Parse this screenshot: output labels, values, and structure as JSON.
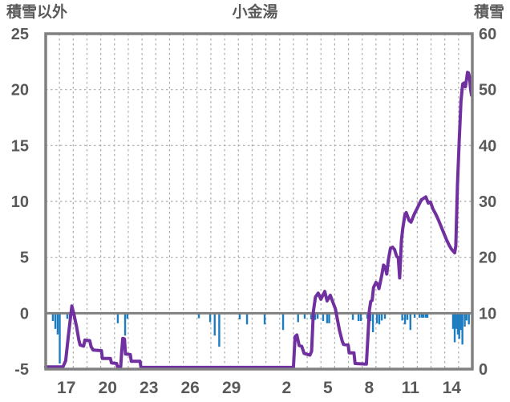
{
  "title": "小金湯",
  "left_axis": {
    "label": "積雪以外",
    "ticks": [
      25,
      20,
      15,
      10,
      5,
      0,
      -5
    ],
    "min": -5,
    "max": 25
  },
  "right_axis": {
    "label": "積雪",
    "ticks": [
      60,
      50,
      40,
      30,
      20,
      10,
      0
    ],
    "min": 0,
    "max": 60
  },
  "x_axis": {
    "tick_labels": [
      "17",
      "20",
      "23",
      "26",
      "29",
      "2",
      "5",
      "8",
      "11",
      "14"
    ],
    "tick_day_indices": [
      1,
      4,
      7,
      10,
      13,
      17,
      20,
      23,
      26,
      29
    ],
    "total_days": 31
  },
  "colors": {
    "snow_line": "#7030A0",
    "bars": "#1E7CC0",
    "frame": "#808080",
    "grid": "#ABABAB",
    "text": "#595959"
  },
  "chart_data": {
    "type": "line+bar",
    "title": "小金湯",
    "left_ylim": [
      -5,
      25
    ],
    "right_ylim": [
      0,
      60
    ],
    "x_range_days": [
      0,
      31
    ],
    "grid": "daily vertical dashed lines; horizontal dashed lines every 5 (left axis); solid grey line at left-axis 0",
    "series": [
      {
        "name": "積雪",
        "type": "line",
        "axis": "right",
        "points": [
          [
            0,
            0.4
          ],
          [
            1.25,
            0.4
          ],
          [
            1.45,
            1.5
          ],
          [
            1.65,
            6
          ],
          [
            1.9,
            11.3
          ],
          [
            2.05,
            9.8
          ],
          [
            2.25,
            7.5
          ],
          [
            2.4,
            5.3
          ],
          [
            2.5,
            4.3
          ],
          [
            2.75,
            4.1
          ],
          [
            2.85,
            5.2
          ],
          [
            3.2,
            5.1
          ],
          [
            3.3,
            4
          ],
          [
            3.45,
            3.4
          ],
          [
            4.05,
            3.3
          ],
          [
            4.12,
            1.9
          ],
          [
            4.7,
            1.9
          ],
          [
            4.78,
            1.1
          ],
          [
            5.15,
            1
          ],
          [
            5.22,
            0.4
          ],
          [
            5.45,
            0.4
          ],
          [
            5.52,
            3
          ],
          [
            5.6,
            5.5
          ],
          [
            5.72,
            5.4
          ],
          [
            5.8,
            2.7
          ],
          [
            6.15,
            2.6
          ],
          [
            6.22,
            1.4
          ],
          [
            6.85,
            1.4
          ],
          [
            6.92,
            0.3
          ],
          [
            18,
            0.3
          ],
          [
            18.12,
            5.8
          ],
          [
            18.25,
            6.1
          ],
          [
            18.42,
            4.2
          ],
          [
            18.6,
            4.1
          ],
          [
            18.78,
            2.8
          ],
          [
            19.2,
            2.5
          ],
          [
            19.32,
            3.2
          ],
          [
            19.45,
            10.3
          ],
          [
            19.6,
            12.9
          ],
          [
            19.8,
            13.6
          ],
          [
            20,
            12.5
          ],
          [
            20.28,
            13.9
          ],
          [
            20.45,
            12.2
          ],
          [
            20.68,
            13.2
          ],
          [
            20.88,
            11.9
          ],
          [
            21.05,
            10.8
          ],
          [
            21.35,
            6.9
          ],
          [
            21.55,
            5
          ],
          [
            21.65,
            4.4
          ],
          [
            21.98,
            4.3
          ],
          [
            22.05,
            2.9
          ],
          [
            22.4,
            2.9
          ],
          [
            22.48,
            1
          ],
          [
            23.3,
            0.9
          ],
          [
            23.42,
            6
          ],
          [
            23.52,
            10.5
          ],
          [
            23.62,
            12.1
          ],
          [
            23.72,
            12.3
          ],
          [
            23.82,
            14.6
          ],
          [
            24,
            15.5
          ],
          [
            24.12,
            15.2
          ],
          [
            24.22,
            14.4
          ],
          [
            24.42,
            16.8
          ],
          [
            24.55,
            18.6
          ],
          [
            24.68,
            18.2
          ],
          [
            24.78,
            17
          ],
          [
            24.9,
            19.5
          ],
          [
            25.05,
            21.6
          ],
          [
            25.2,
            21.8
          ],
          [
            25.35,
            21.4
          ],
          [
            25.5,
            20.2
          ],
          [
            25.62,
            19.9
          ],
          [
            25.72,
            16.3
          ],
          [
            25.85,
            23
          ],
          [
            25.95,
            25.2
          ],
          [
            26.1,
            27.6
          ],
          [
            26.2,
            28
          ],
          [
            26.4,
            26.6
          ],
          [
            26.55,
            26.3
          ],
          [
            26.8,
            27.8
          ],
          [
            27,
            28.8
          ],
          [
            27.3,
            30.3
          ],
          [
            27.62,
            30.8
          ],
          [
            27.8,
            29.7
          ],
          [
            27.95,
            29.9
          ],
          [
            28.15,
            28.6
          ],
          [
            28.35,
            27.7
          ],
          [
            28.55,
            26.6
          ],
          [
            28.75,
            25.4
          ],
          [
            28.95,
            24.2
          ],
          [
            29.15,
            23
          ],
          [
            29.35,
            22
          ],
          [
            29.5,
            21.4
          ],
          [
            29.65,
            21
          ],
          [
            29.72,
            20.8
          ],
          [
            29.8,
            22
          ],
          [
            29.92,
            33
          ],
          [
            30.05,
            41
          ],
          [
            30.18,
            48
          ],
          [
            30.3,
            51
          ],
          [
            30.42,
            51.2
          ],
          [
            30.5,
            50.5
          ],
          [
            30.58,
            51.8
          ],
          [
            30.65,
            53.1
          ],
          [
            30.72,
            53
          ],
          [
            30.8,
            52.2
          ],
          [
            30.88,
            50
          ],
          [
            30.94,
            49
          ]
        ]
      },
      {
        "name": "積雪以外",
        "type": "bar",
        "axis": "left",
        "points": [
          [
            0.52,
            -0.7
          ],
          [
            0.7,
            -1.4
          ],
          [
            0.87,
            -1.9
          ],
          [
            1.02,
            -4.5
          ],
          [
            1.57,
            -0.5
          ],
          [
            1.75,
            -0.6
          ],
          [
            5.24,
            -0.9
          ],
          [
            5.77,
            -2
          ],
          [
            5.94,
            -0.5
          ],
          [
            11.13,
            -0.45
          ],
          [
            11.95,
            -0.8
          ],
          [
            12.28,
            -2
          ],
          [
            12.61,
            -3
          ],
          [
            14.1,
            -0.55
          ],
          [
            14.63,
            -1
          ],
          [
            15.91,
            -1
          ],
          [
            17.25,
            -1.5
          ],
          [
            18.34,
            -0.8
          ],
          [
            18.82,
            -0.5
          ],
          [
            19.29,
            -0.55
          ],
          [
            19.58,
            -0.6
          ],
          [
            19.76,
            -0.5
          ],
          [
            20.16,
            -0.7
          ],
          [
            20.45,
            -0.9
          ],
          [
            20.6,
            -0.9
          ],
          [
            22.32,
            -0.6
          ],
          [
            22.73,
            -0.7
          ],
          [
            22.9,
            -0.7
          ],
          [
            23.37,
            -0.5
          ],
          [
            23.6,
            -0.7
          ],
          [
            23.78,
            -1.7
          ],
          [
            24.07,
            -0.9
          ],
          [
            24.24,
            -1
          ],
          [
            24.42,
            -0.65
          ],
          [
            24.65,
            -0.5
          ],
          [
            25.91,
            -0.65
          ],
          [
            26.11,
            -1
          ],
          [
            26.28,
            -0.6
          ],
          [
            26.5,
            -1.5
          ],
          [
            26.81,
            -0.4
          ],
          [
            27.16,
            -0.4
          ],
          [
            27.33,
            -0.4
          ],
          [
            27.45,
            -0.4
          ],
          [
            27.62,
            -0.4
          ],
          [
            27.74,
            -0.4
          ],
          [
            29.6,
            -1.4
          ],
          [
            29.72,
            -2.6
          ],
          [
            29.85,
            -1.4
          ],
          [
            29.95,
            -1.9
          ],
          [
            30.05,
            -2.3
          ],
          [
            30.15,
            -1.5
          ],
          [
            30.28,
            -2.8
          ],
          [
            30.45,
            -1.2
          ],
          [
            30.58,
            -0.65
          ],
          [
            30.75,
            -1
          ]
        ]
      }
    ]
  }
}
